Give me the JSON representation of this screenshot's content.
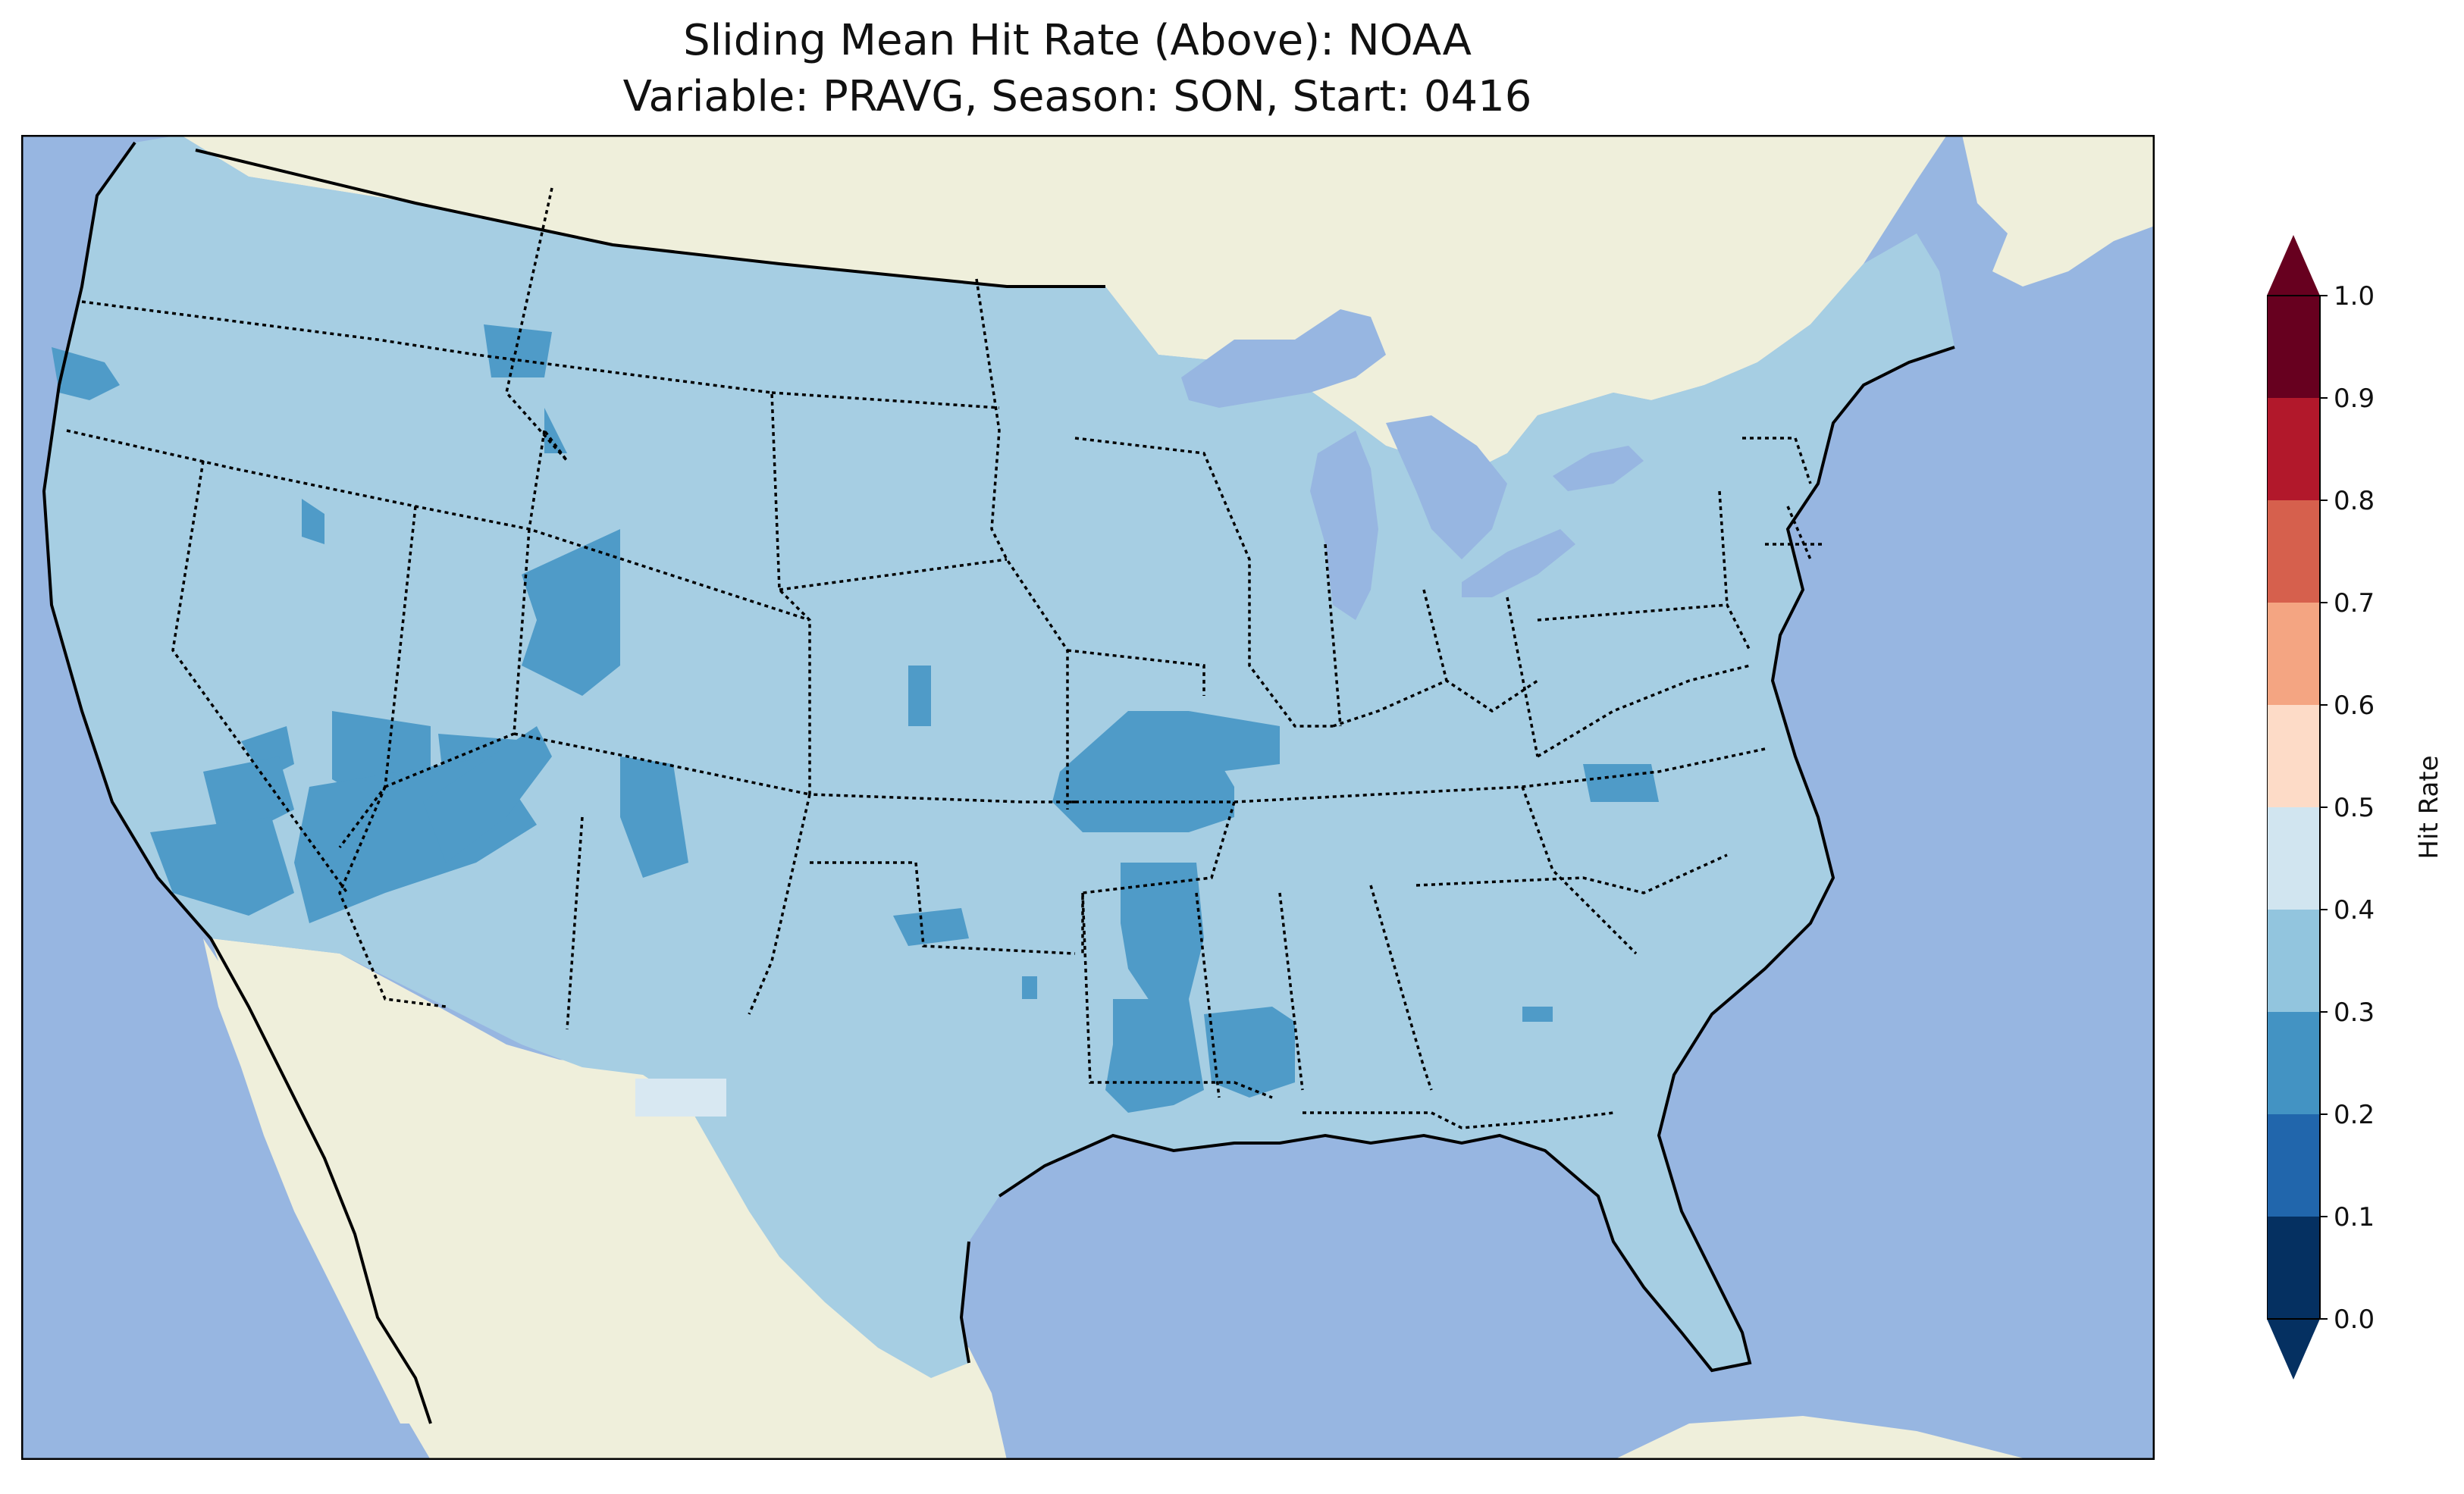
{
  "title_line1": "Sliding Mean Hit Rate (Above): NOAA",
  "title_line2": "Variable: PRAVG, Season: SON, Start: 0416",
  "colorbar": {
    "label": "Hit Rate",
    "ticks": [
      "0.0",
      "0.1",
      "0.2",
      "0.3",
      "0.4",
      "0.5",
      "0.6",
      "0.7",
      "0.8",
      "0.9",
      "1.0"
    ],
    "bins": [
      {
        "from": 0.0,
        "to": 0.1,
        "color": "#053061"
      },
      {
        "from": 0.1,
        "to": 0.2,
        "color": "#2166ac"
      },
      {
        "from": 0.2,
        "to": 0.3,
        "color": "#4393c3"
      },
      {
        "from": 0.3,
        "to": 0.4,
        "color": "#92c5de"
      },
      {
        "from": 0.4,
        "to": 0.5,
        "color": "#d1e5f0"
      },
      {
        "from": 0.5,
        "to": 0.6,
        "color": "#fddbc7"
      },
      {
        "from": 0.6,
        "to": 0.7,
        "color": "#f4a582"
      },
      {
        "from": 0.7,
        "to": 0.8,
        "color": "#d6604d"
      },
      {
        "from": 0.8,
        "to": 0.9,
        "color": "#b2182b"
      },
      {
        "from": 0.9,
        "to": 1.0,
        "color": "#67001f"
      }
    ],
    "extend_low_color": "#053061",
    "extend_high_color": "#67001f"
  },
  "map": {
    "ocean_color": "#97b6e1",
    "land_color": "#efefdb",
    "conus_fill_color": "#a6cee3",
    "low_bin_color": "#4f9bc8",
    "high_bin_color": "#d8e8f2",
    "border_color": "#000000",
    "dominant_range": "0.3-0.4",
    "minor_range_low": "0.2-0.3",
    "minor_range_high": "0.4-0.5"
  }
}
